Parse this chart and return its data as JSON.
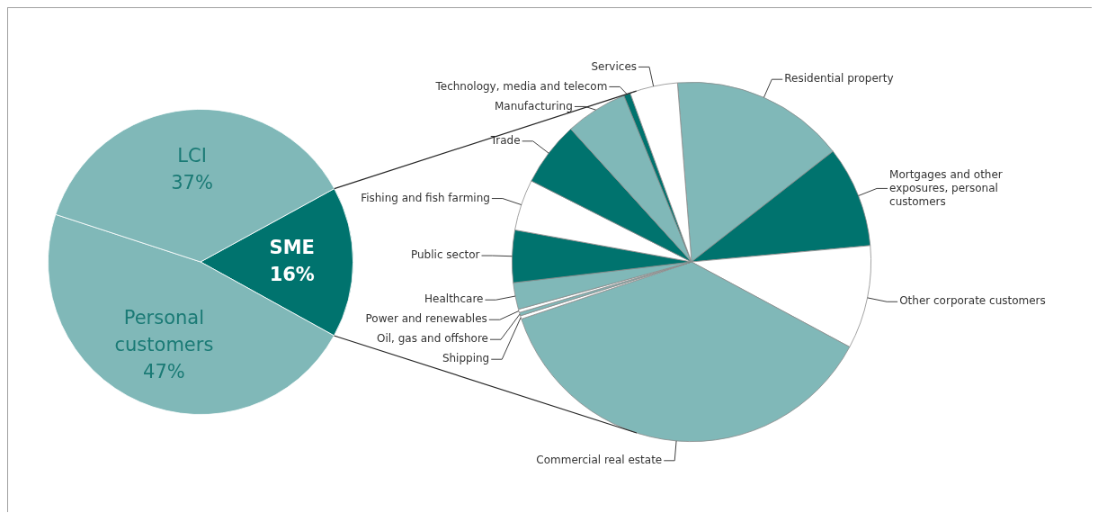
{
  "chart_data": [
    {
      "type": "pie",
      "categories": [
        "SME",
        "Personal customers",
        "LCI"
      ],
      "values": [
        16,
        47,
        37
      ],
      "value_labels": [
        "16%",
        "47%",
        "37%"
      ],
      "colors": [
        "#00736e",
        "#80b8b8",
        "#80b8b8"
      ]
    },
    {
      "type": "pie",
      "categories": [
        "Residential property",
        "Mortgages and other exposures, personal customers",
        "Other corporate customers",
        "Commercial real estate",
        "Shipping",
        "Oil, gas and offshore",
        "Power and renewables",
        "Healthcare",
        "Public sector",
        "Fishing and fish farming",
        "Trade",
        "Manufacturing",
        "Technology, media and telecom",
        "Services"
      ],
      "values": [
        15.7,
        9.1,
        9.3,
        37.0,
        0.3,
        0.3,
        0.3,
        2.4,
        4.7,
        4.6,
        5.8,
        5.6,
        0.6,
        4.3
      ],
      "colors": [
        "#80b8b8",
        "#00736e",
        "#ffffff",
        "#80b8b8",
        "#ffffff",
        "#80b8b8",
        "#ffffff",
        "#80b8b8",
        "#00736e",
        "#ffffff",
        "#00736e",
        "#80b8b8",
        "#00736e",
        "#ffffff"
      ]
    }
  ]
}
